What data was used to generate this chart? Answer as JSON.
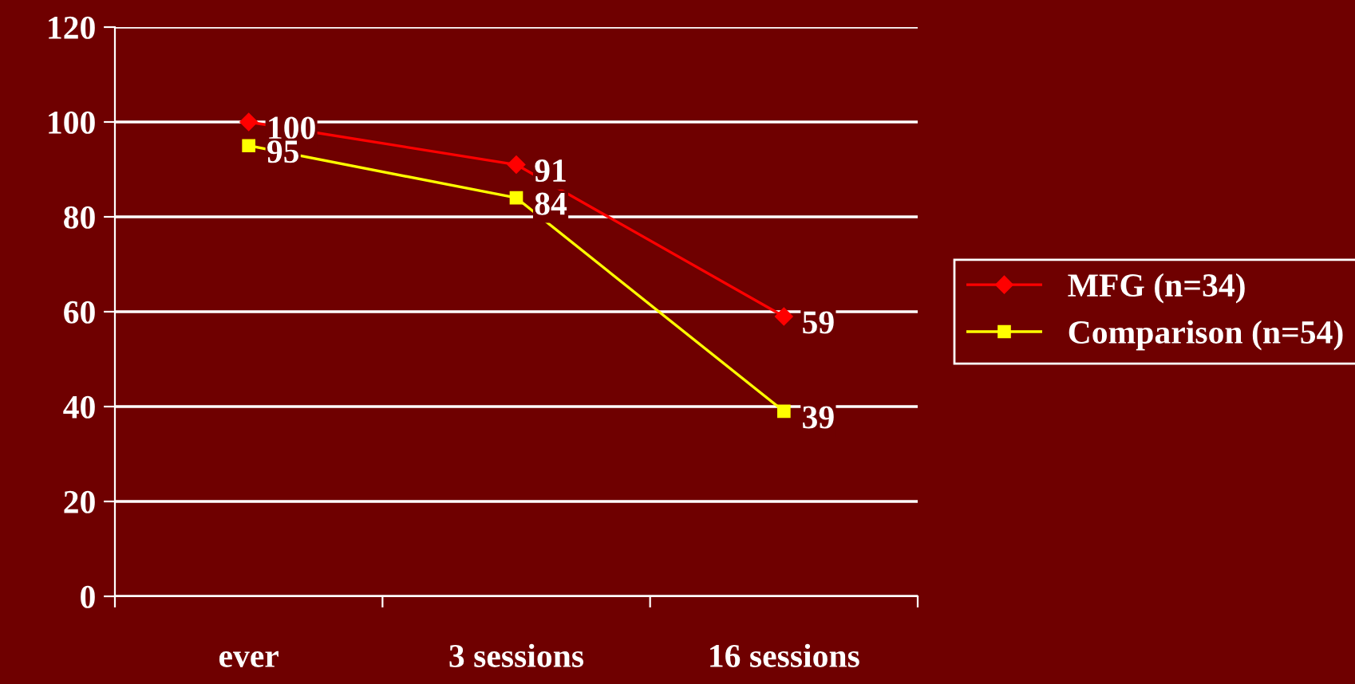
{
  "chart_data": {
    "type": "line",
    "categories": [
      "ever",
      "3 sessions",
      "16 sessions"
    ],
    "series": [
      {
        "name": "MFG (n=34)",
        "color": "#ff0000",
        "marker": "diamond",
        "values": [
          100,
          91,
          59
        ]
      },
      {
        "name": "Comparison (n=54)",
        "color": "#ffff00",
        "marker": "square",
        "values": [
          95,
          84,
          39
        ]
      }
    ],
    "ylim": [
      0,
      120
    ],
    "yticks": [
      0,
      20,
      40,
      60,
      80,
      100,
      120
    ],
    "grid": "y",
    "legend": "right",
    "data_labels": true,
    "line_style": "solid"
  }
}
